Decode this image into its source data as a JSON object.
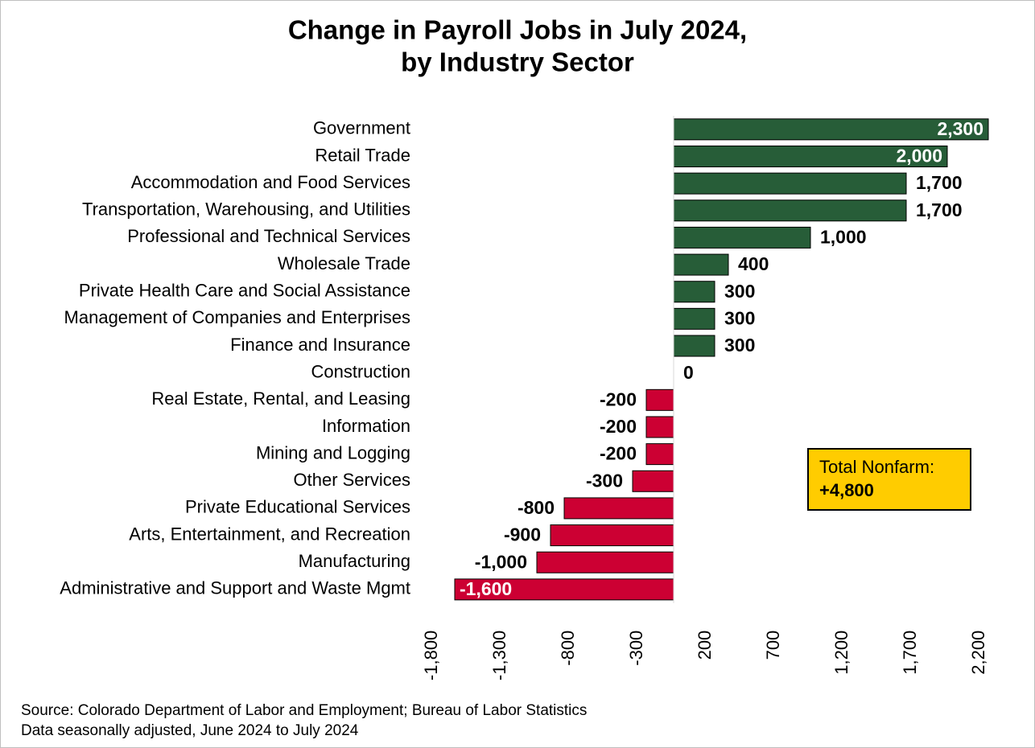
{
  "chart_data": {
    "type": "hbar",
    "title": [
      "Change in Payroll Jobs in July 2024,",
      "by Industry Sector"
    ],
    "categories": [
      "Government",
      "Retail Trade",
      "Accommodation and Food Services",
      "Transportation, Warehousing, and Utilities",
      "Professional and Technical Services",
      "Wholesale Trade",
      "Private Health Care and Social Assistance",
      "Management of Companies and Enterprises",
      "Finance and Insurance",
      "Construction",
      "Real Estate, Rental, and Leasing",
      "Information",
      "Mining and Logging",
      "Other Services",
      "Private Educational Services",
      "Arts, Entertainment, and Recreation",
      "Manufacturing",
      "Administrative and Support and Waste Mgmt"
    ],
    "values": [
      2300,
      2000,
      1700,
      1700,
      1000,
      400,
      300,
      300,
      300,
      0,
      -200,
      -200,
      -200,
      -300,
      -800,
      -900,
      -1000,
      -1600
    ],
    "value_labels": [
      "2,300",
      "2,000",
      "1,700",
      "1,700",
      "1,000",
      "400",
      "300",
      "300",
      "300",
      "0",
      "-200",
      "-200",
      "-200",
      "-300",
      "-800",
      "-900",
      "-1,000",
      "-1,600"
    ],
    "positive_color": "#275d38",
    "negative_color": "#cc0033",
    "xlim": [
      -1800,
      2300
    ],
    "xticks": [
      {
        "value": -1800,
        "label": "-1,800"
      },
      {
        "value": -1300,
        "label": "-1,300"
      },
      {
        "value": -800,
        "label": "-800"
      },
      {
        "value": -300,
        "label": "-300"
      },
      200,
      700,
      {
        "value": 1200,
        "label": "1,200"
      },
      {
        "value": 1700,
        "label": "1,700"
      },
      {
        "value": 2200,
        "label": "2,200"
      }
    ],
    "annotations": [
      "Total Nonfarm:",
      "+4,800"
    ],
    "source": [
      "Source: Colorado Department of Labor and Employment; Bureau of Labor Statistics",
      "Data seasonally adjusted, June 2024 to July 2024"
    ]
  }
}
